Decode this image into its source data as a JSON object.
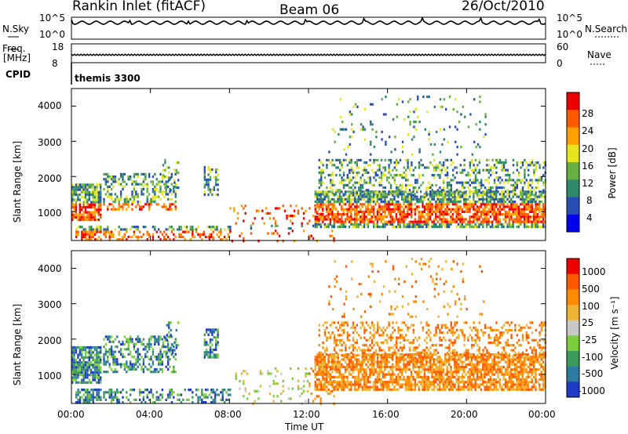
{
  "header": {
    "station": "Rankin Inlet (fitACF)",
    "beam": "Beam 06",
    "date": "26/Oct/2010"
  },
  "top_panels": {
    "nsky_label": "N.Sky",
    "nsky_ticks": [
      "10^5",
      "10^0"
    ],
    "nsearch_label": "N.Search",
    "nsearch_ticks": [
      "10^5",
      "10^0"
    ],
    "freq_label": "Freq.",
    "freq_unit": "[MHz]",
    "freq_ticks": [
      "18",
      "8"
    ],
    "nave_label": "Nave",
    "nave_ticks": [
      "60",
      "0"
    ],
    "cpid_label": "CPID",
    "cpid_value": "themis 3300"
  },
  "chart_data": [
    {
      "type": "heatmap",
      "name": "power-panel",
      "ylabel": "Slant Range [km]",
      "yticks": [
        1000,
        2000,
        3000,
        4000
      ],
      "ylim": [
        180,
        4500
      ],
      "xlim": [
        0,
        24
      ],
      "colorbar": {
        "label": "Power [dB]",
        "ticks": [
          "28",
          "24",
          "20",
          "16",
          "12",
          "8",
          "4"
        ],
        "colors": [
          "#0000ee",
          "#2850b4",
          "#2e8a6a",
          "#66b044",
          "#e6e61e",
          "#ffa000",
          "#ff5a00",
          "#ee0000"
        ]
      }
    },
    {
      "type": "heatmap",
      "name": "velocity-panel",
      "ylabel": "Slant Range [km]",
      "yticks": [
        1000,
        2000,
        3000,
        4000
      ],
      "ylim": [
        180,
        4500
      ],
      "xlim": [
        0,
        24
      ],
      "xticks": [
        "00:00",
        "04:00",
        "08:00",
        "12:00",
        "16:00",
        "20:00",
        "00:00"
      ],
      "xlabel": "Time UT",
      "colorbar": {
        "label": "Velocity [m s⁻¹]",
        "ticks": [
          "1000",
          "500",
          "100",
          "25",
          "-25",
          "-100",
          "-500",
          "-1000"
        ],
        "colors": [
          "#1e3cc8",
          "#2e7aa0",
          "#3c9a5a",
          "#7ccd3c",
          "#c8c8c8",
          "#f0b432",
          "#ff8c00",
          "#ff5a00",
          "#ee0000"
        ]
      }
    }
  ]
}
